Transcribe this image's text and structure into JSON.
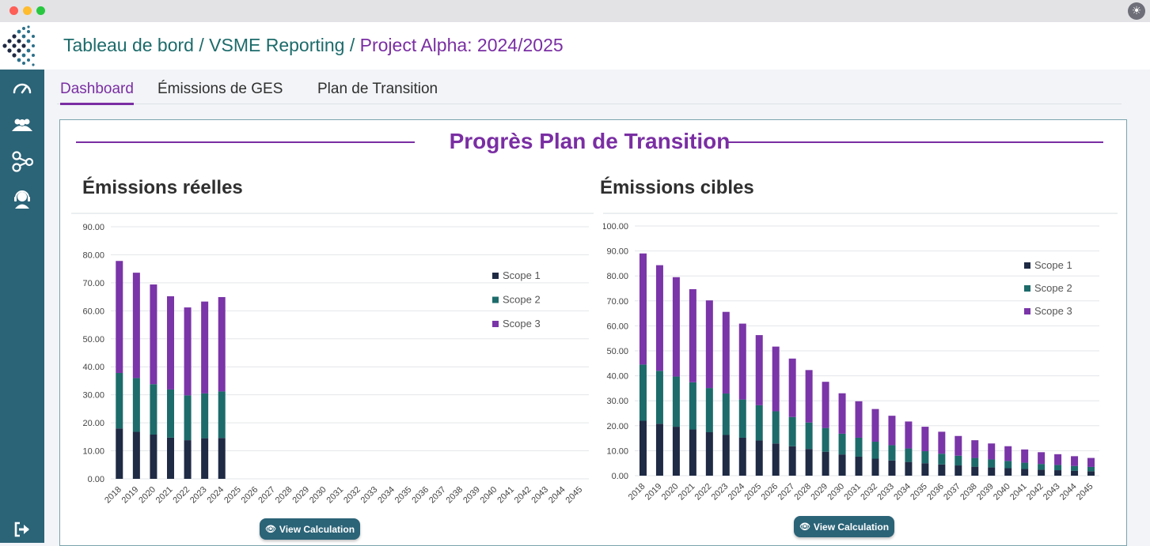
{
  "window": {
    "theme_icon": "sun-icon"
  },
  "header": {
    "breadcrumb": [
      {
        "label": "Tableau de bord"
      },
      {
        "label": "VSME Reporting"
      },
      {
        "label": "Project Alpha: 2024/2025"
      }
    ],
    "separator": " / "
  },
  "sidebar": {
    "items": [
      {
        "icon": "speedometer-icon"
      },
      {
        "icon": "users-icon"
      },
      {
        "icon": "network-icon"
      },
      {
        "icon": "support-agent-icon"
      }
    ],
    "logout_icon": "logout-icon"
  },
  "tabs": [
    {
      "label": "Dashboard",
      "active": true
    },
    {
      "label": "Émissions de GES",
      "active": false
    },
    {
      "label": "Plan de Transition",
      "active": false
    }
  ],
  "panel": {
    "title": "Progrès Plan de Transition"
  },
  "colors": {
    "scope1": "#1f2a44",
    "scope2": "#1d6b6b",
    "scope3": "#7a35a8",
    "accent": "#7a2ea3",
    "sidebar": "#2b6377"
  },
  "buttons": {
    "view_calculation": "View Calculation"
  },
  "chart_data": [
    {
      "type": "bar",
      "stacked": true,
      "title": "Émissions réelles",
      "categories": [
        "2018",
        "2019",
        "2020",
        "2021",
        "2022",
        "2023",
        "2024",
        "2025",
        "2026",
        "2027",
        "2028",
        "2029",
        "2030",
        "2031",
        "2032",
        "2033",
        "2034",
        "2035",
        "2036",
        "2037",
        "2038",
        "2039",
        "2040",
        "2041",
        "2042",
        "2043",
        "2044",
        "2045"
      ],
      "series": [
        {
          "name": "Scope 1",
          "values": [
            18,
            16.8,
            15.8,
            14.7,
            13.8,
            14.5,
            14.6,
            null,
            null,
            null,
            null,
            null,
            null,
            null,
            null,
            null,
            null,
            null,
            null,
            null,
            null,
            null,
            null,
            null,
            null,
            null,
            null,
            null
          ]
        },
        {
          "name": "Scope 2",
          "values": [
            19.8,
            19.2,
            18,
            17.2,
            16,
            16,
            16.6,
            null,
            null,
            null,
            null,
            null,
            null,
            null,
            null,
            null,
            null,
            null,
            null,
            null,
            null,
            null,
            null,
            null,
            null,
            null,
            null,
            null
          ]
        },
        {
          "name": "Scope 3",
          "values": [
            40,
            37.6,
            35.6,
            33.3,
            31.4,
            32.8,
            33.7,
            null,
            null,
            null,
            null,
            null,
            null,
            null,
            null,
            null,
            null,
            null,
            null,
            null,
            null,
            null,
            null,
            null,
            null,
            null,
            null,
            null
          ]
        }
      ],
      "yticks": [
        "0.00",
        "10.00",
        "20.00",
        "30.00",
        "40.00",
        "50.00",
        "60.00",
        "70.00",
        "80.00",
        "90.00"
      ],
      "ylim": [
        0,
        90
      ],
      "legend": "right",
      "grid": true
    },
    {
      "type": "bar",
      "stacked": true,
      "title": "Émissions cibles",
      "categories": [
        "2018",
        "2019",
        "2020",
        "2021",
        "2022",
        "2023",
        "2024",
        "2025",
        "2026",
        "2027",
        "2028",
        "2029",
        "2030",
        "2031",
        "2032",
        "2033",
        "2034",
        "2035",
        "2036",
        "2037",
        "2038",
        "2039",
        "2040",
        "2041",
        "2042",
        "2043",
        "2044",
        "2045"
      ],
      "series": [
        {
          "name": "Scope 1",
          "values": [
            22,
            20.8,
            19.6,
            18.5,
            17.4,
            16.3,
            15.2,
            14.1,
            12.9,
            11.8,
            10.7,
            9.6,
            8.5,
            7.6,
            6.8,
            6.1,
            5.5,
            5,
            4.5,
            4.1,
            3.6,
            3.3,
            3,
            2.7,
            2.4,
            2.2,
            2,
            1.8
          ]
        },
        {
          "name": "Scope 2",
          "values": [
            22.5,
            21.2,
            20.1,
            18.9,
            17.7,
            16.6,
            15.3,
            14.1,
            12.9,
            11.7,
            10.6,
            9.5,
            8.3,
            7.6,
            6.8,
            6.1,
            5.4,
            4.8,
            4.3,
            3.9,
            3.5,
            3.2,
            2.9,
            2.5,
            2.3,
            2.1,
            1.9,
            1.7
          ]
        },
        {
          "name": "Scope 3",
          "values": [
            44.5,
            42.3,
            39.8,
            37.3,
            35.1,
            32.7,
            30.4,
            28.1,
            25.9,
            23.4,
            21,
            18.5,
            16.2,
            14.6,
            13.1,
            11.8,
            10.8,
            9.8,
            8.8,
            7.9,
            7.1,
            6.4,
            5.9,
            5.3,
            4.7,
            4.3,
            3.9,
            3.6
          ]
        }
      ],
      "yticks": [
        "0.00",
        "10.00",
        "20.00",
        "30.00",
        "40.00",
        "50.00",
        "60.00",
        "70.00",
        "80.00",
        "90.00",
        "100.00"
      ],
      "ylim": [
        0,
        100
      ],
      "legend": "right",
      "grid": true
    }
  ]
}
